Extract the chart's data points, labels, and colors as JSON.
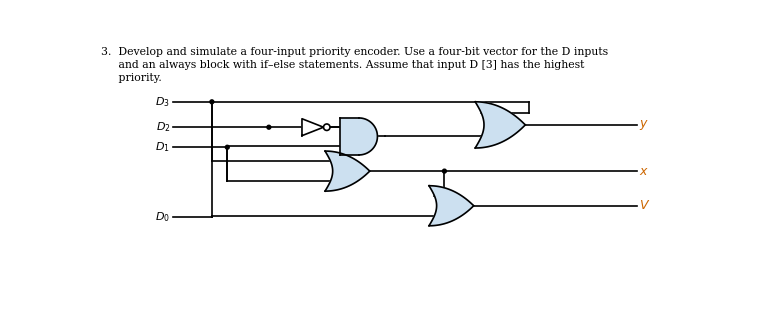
{
  "bg_color": "#ffffff",
  "gate_fill": "#cce0f0",
  "gate_edge": "#000000",
  "wire_color": "#000000",
  "label_color": "#000000",
  "output_label_color": "#cc6600",
  "figsize": [
    7.68,
    3.35
  ],
  "dpi": 100,
  "text_line1": "3.  Develop and simulate a four-input priority encoder. Use a four-bit vector for the D inputs",
  "text_line2": "     and an always block with if–else statements. Assume that input D [3] has the highest",
  "text_line3": "     priority.",
  "lw": 1.2
}
